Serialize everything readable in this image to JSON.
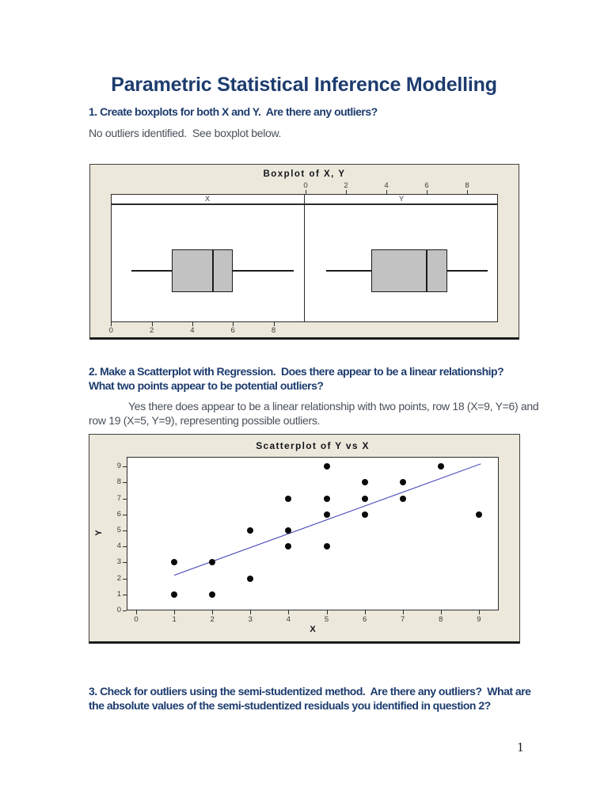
{
  "page": {
    "title": "Parametric Statistical Inference Modelling",
    "q1": "1. Create boxplots for both X and Y.  Are there any outliers?",
    "a1": "No outliers identified.  See boxplot below.",
    "q2_line1": "2. Make a Scatterplot with Regression.  Does there appear to be a linear relationship?",
    "q2_line2": "What two points appear to be potential outliers?",
    "a2_line1": "Yes there does appear to be a linear relationship with two points, row 18 (X=9, Y=6) and",
    "a2_line2": "row 19 (X=5, Y=9), representing possible outliers.",
    "q3_line1": "3. Check for outliers using the semi-studentized method.  Are there any outliers?  What are",
    "q3_line2": "the absolute values of the semi-studentized residuals you identified in question 2?",
    "page_number": "1"
  },
  "colors": {
    "heading": "#1d3c6e",
    "body": "#49505a",
    "figure_bg": "#ece8db",
    "box_fill": "#c2c2c2",
    "regression_line": "#3d3db8"
  },
  "chart_data": [
    {
      "type": "boxplot",
      "title": "Boxplot of X, Y",
      "orientation": "horizontal",
      "panels": [
        {
          "label": "X",
          "axis_position": "bottom",
          "ticks": [
            0,
            2,
            4,
            6,
            8
          ],
          "min": 1,
          "q1": 3,
          "median": 5,
          "q3": 6,
          "max": 9
        },
        {
          "label": "Y",
          "axis_position": "top",
          "ticks": [
            0,
            2,
            4,
            6,
            8
          ],
          "min": 1,
          "q1": 3.25,
          "median": 6,
          "q3": 7,
          "max": 9
        }
      ]
    },
    {
      "type": "scatter",
      "title": "Scatterplot of Y vs X",
      "xlabel": "X",
      "ylabel": "Y",
      "x_ticks": [
        0,
        1,
        2,
        3,
        4,
        5,
        6,
        7,
        8,
        9
      ],
      "y_ticks": [
        0,
        1,
        2,
        3,
        4,
        5,
        6,
        7,
        8,
        9
      ],
      "xlim": [
        -0.25,
        9.7
      ],
      "ylim": [
        -0.35,
        9.6
      ],
      "grid": false,
      "points": [
        [
          1,
          1
        ],
        [
          1,
          3
        ],
        [
          2,
          1
        ],
        [
          2,
          3
        ],
        [
          3,
          2
        ],
        [
          3,
          5
        ],
        [
          4,
          4
        ],
        [
          4,
          5
        ],
        [
          4,
          7
        ],
        [
          5,
          4
        ],
        [
          5,
          6
        ],
        [
          5,
          7
        ],
        [
          5,
          9
        ],
        [
          6,
          6
        ],
        [
          6,
          7
        ],
        [
          6,
          8
        ],
        [
          7,
          7
        ],
        [
          7,
          8
        ],
        [
          8,
          9
        ],
        [
          9,
          6
        ]
      ],
      "regression": {
        "intercept": 1.378,
        "slope": 0.865,
        "x_start": 1,
        "x_end": 9.05
      }
    }
  ]
}
